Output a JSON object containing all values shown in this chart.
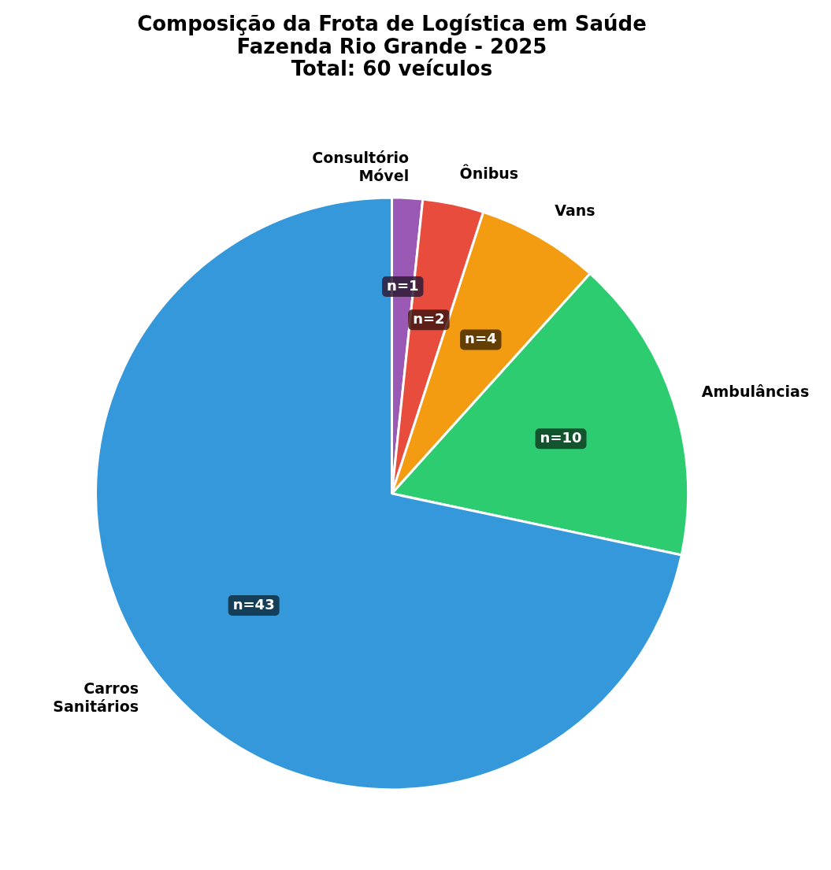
{
  "chart_data": {
    "type": "pie",
    "title": "Composição da Frota de Logística em Saúde\nFazenda Rio Grande - 2025\nTotal: 60 veículos",
    "categories": [
      "Consultório\nMóvel",
      "Ônibus",
      "Vans",
      "Ambulâncias",
      "Carros\nSanitários"
    ],
    "values": [
      1,
      2,
      4,
      10,
      43
    ],
    "colors": [
      "#9b59b6",
      "#e74c3c",
      "#f39c12",
      "#2ecc71",
      "#3498db"
    ],
    "value_labels": [
      "n=1",
      "n=2",
      "n=4",
      "n=10",
      "n=43"
    ],
    "legend": false
  }
}
